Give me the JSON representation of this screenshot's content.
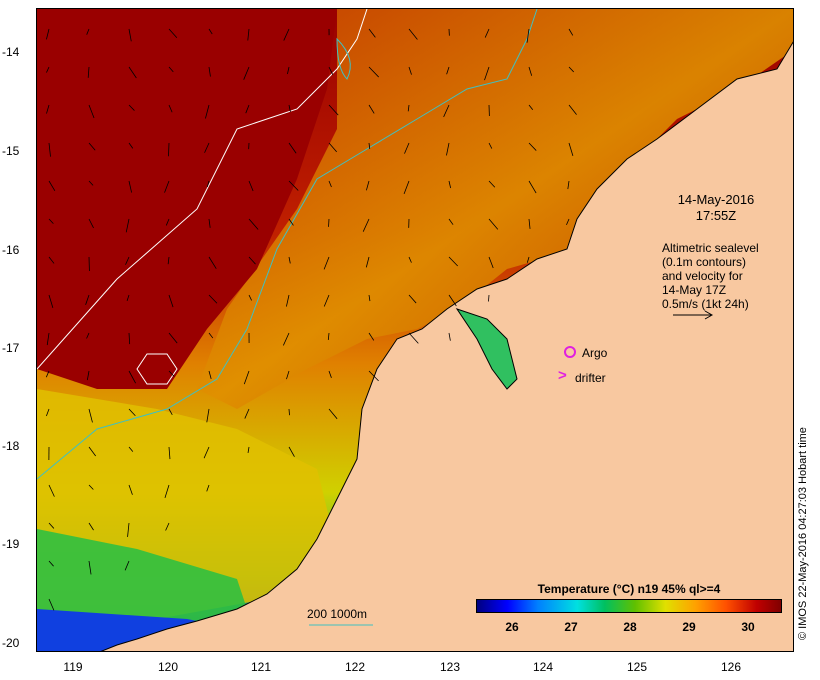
{
  "map": {
    "y_ticks": [
      "-14",
      "-15",
      "-16",
      "-17",
      "-18",
      "-19",
      "-20"
    ],
    "x_ticks": [
      "119",
      "120",
      "121",
      "122",
      "123",
      "124",
      "125",
      "126"
    ],
    "timestamp_line1": "14-May-2016",
    "timestamp_line2": "17:55Z",
    "altimetry_text": [
      "Altimetric sealevel",
      "(0.1m contours)",
      "and velocity for",
      "14-May 17Z",
      "0.5m/s (1kt 24h)"
    ],
    "argo_label": "Argo",
    "drifter_label": "drifter",
    "drifter_symbol": ">",
    "scale_label": "200  1000m",
    "credit": "© IMOS 22-May-2016 04:27:03 Hobart time",
    "colorbar": {
      "title": "Temperature (°C) n19 45% ql>=4",
      "ticks": [
        "26",
        "27",
        "28",
        "29",
        "30"
      ],
      "min": 25.4,
      "max": 30.6
    },
    "colors": {
      "land": "#f8c8a0",
      "warm": "#a00000",
      "contour_200": "#40c0c0",
      "contour_1000": "#ffffff",
      "argo": "#e020e0"
    }
  }
}
